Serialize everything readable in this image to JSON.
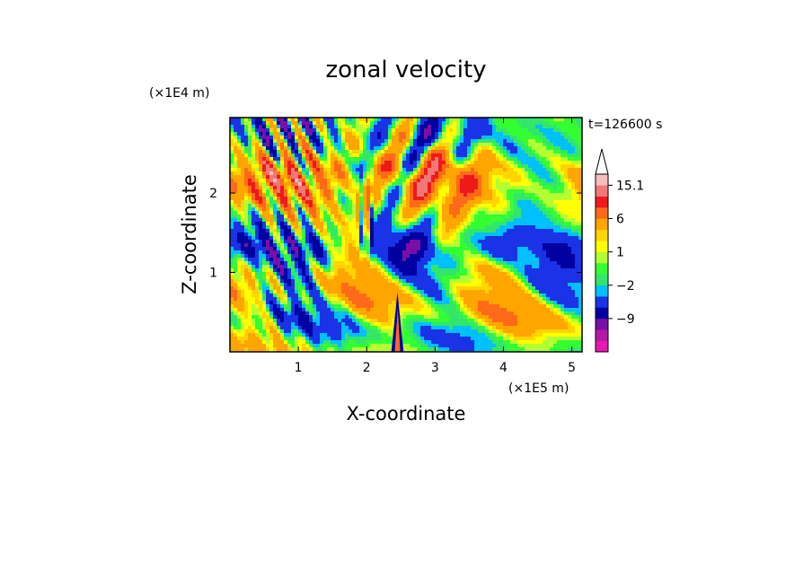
{
  "chart_data": {
    "type": "heatmap",
    "title": "zonal velocity",
    "xlabel": "X-coordinate",
    "ylabel": "Z-coordinate",
    "x_unit": "(×1E5 m)",
    "y_unit": "(×1E4 m)",
    "time_label": "t=126600 s",
    "xlim": [
      0,
      5.15
    ],
    "ylim": [
      0,
      2.95
    ],
    "x_ticks": [
      "1",
      "2",
      "3",
      "4",
      "5"
    ],
    "x_tick_values": [
      1,
      2,
      3,
      4,
      5
    ],
    "y_ticks": [
      "1",
      "2"
    ],
    "y_tick_values": [
      1,
      2
    ],
    "colorbar": {
      "labels": [
        "15.1",
        "6",
        "1",
        "−2",
        "−9"
      ],
      "label_values": [
        15.1,
        6,
        1,
        -2,
        -9
      ],
      "levels": [
        -15,
        -12,
        -9,
        -6,
        -3,
        -2,
        -1,
        0,
        1,
        2,
        3,
        6,
        9,
        12,
        15.1
      ],
      "colors": [
        "#e619b3",
        "#b319a6",
        "#7a0fa6",
        "#0000a0",
        "#1a33e6",
        "#00c0ff",
        "#33e66a",
        "#33ff33",
        "#b3ff33",
        "#ffff00",
        "#ffd400",
        "#ffa500",
        "#ff6a1a",
        "#ee1a1a",
        "#f07878",
        "#f7bcbc"
      ],
      "extend": "max"
    }
  }
}
